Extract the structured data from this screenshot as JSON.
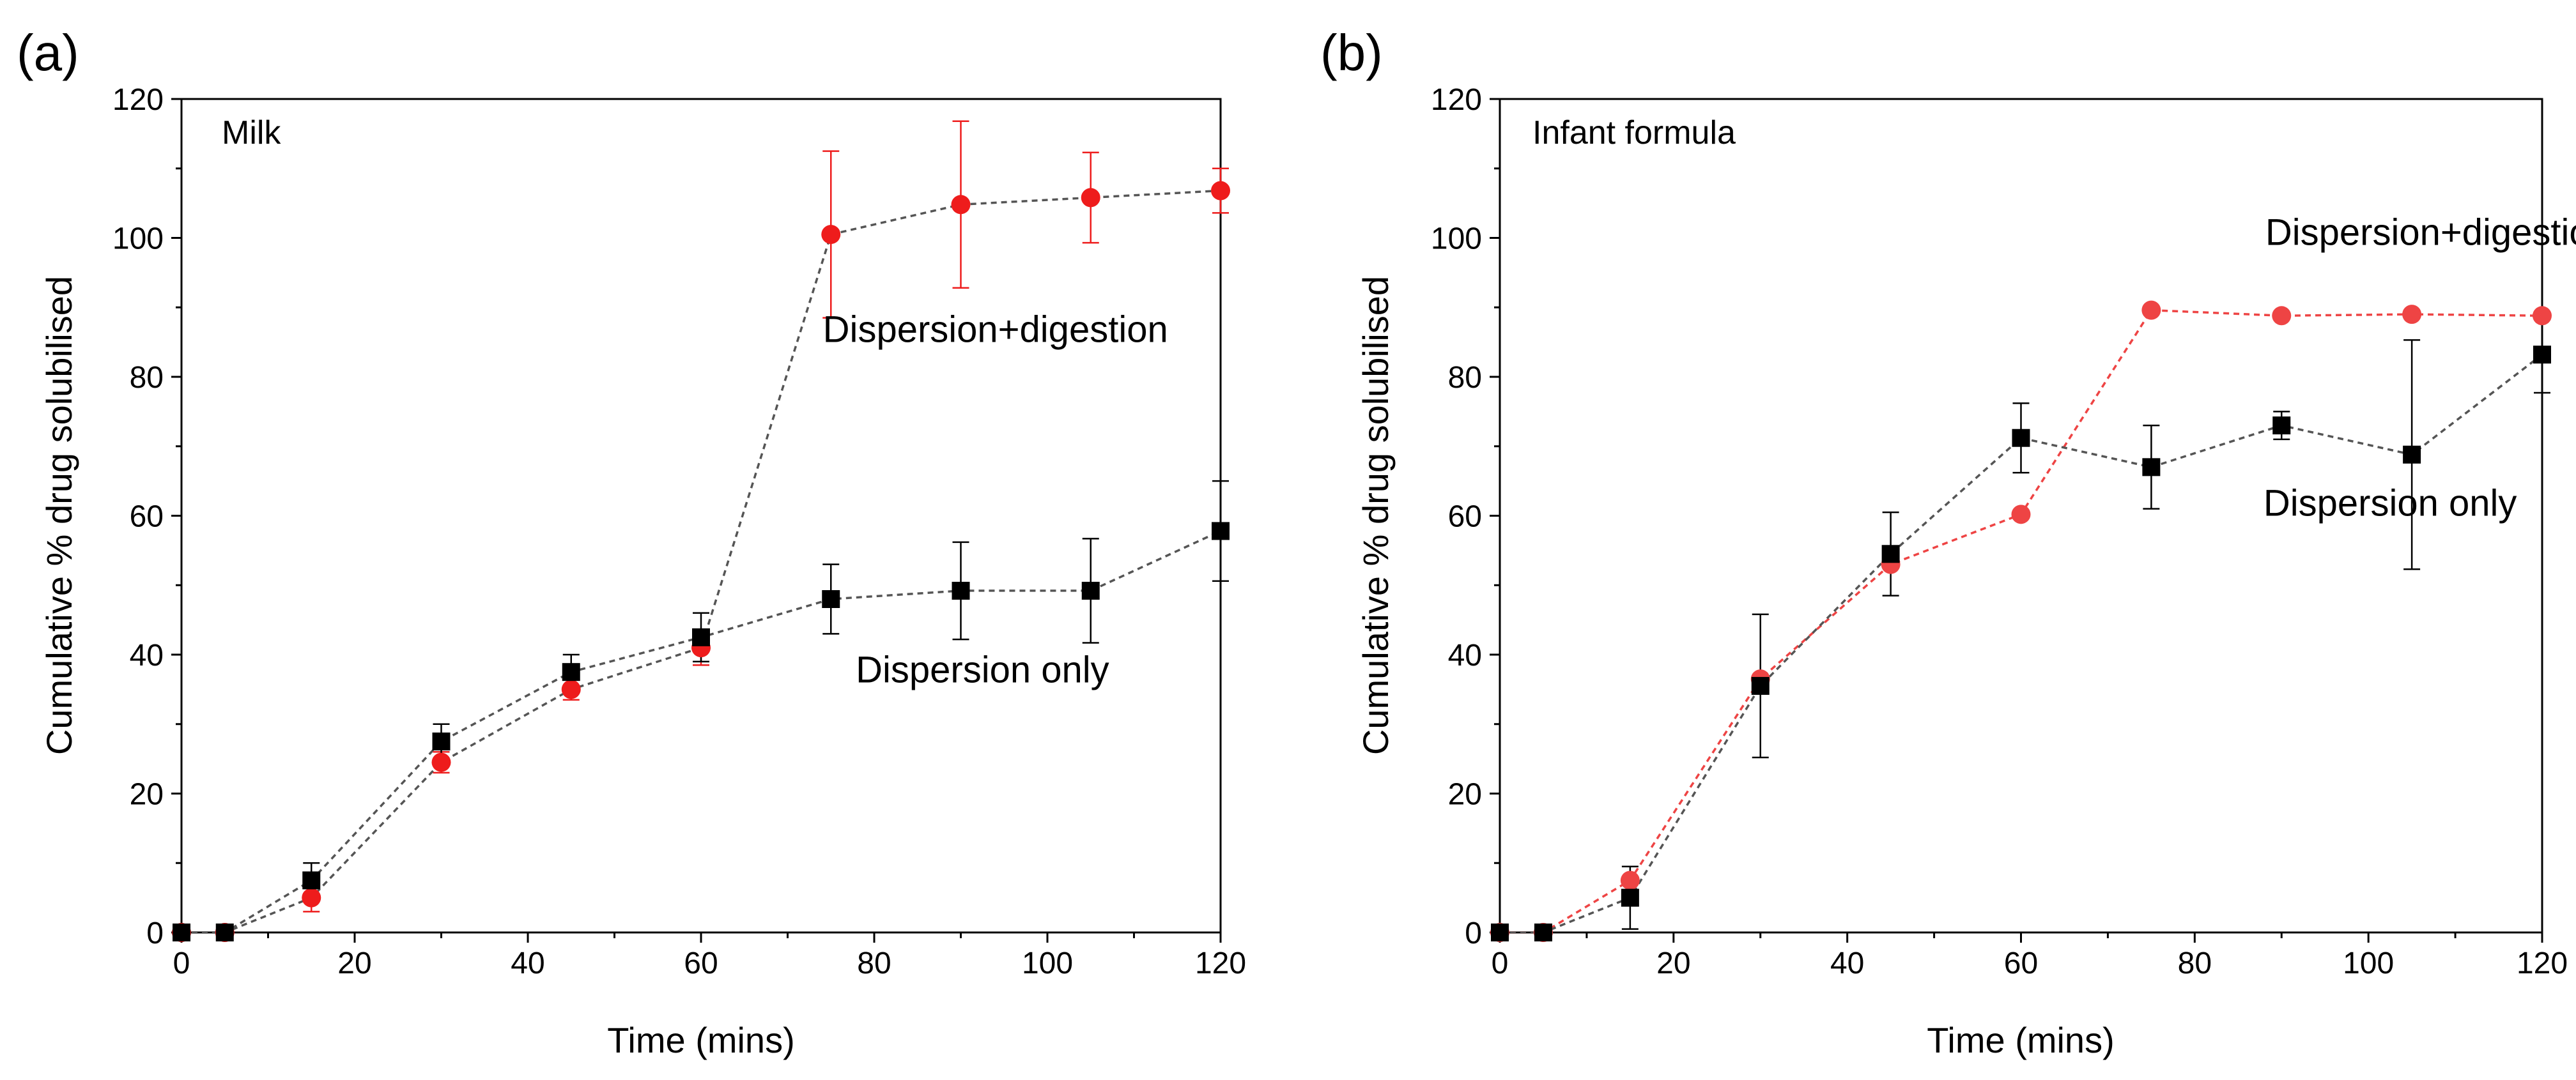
{
  "figure": {
    "panels": [
      {
        "label": "(a)",
        "inset_title": "Milk",
        "xlabel": "Time (mins)",
        "ylabel": "Cumulative % drug solubilised"
      },
      {
        "label": "(b)",
        "inset_title": "Infant formula",
        "xlabel": "Time (mins)",
        "ylabel": "Cumulative % drug solubilised"
      }
    ]
  },
  "chart_data": [
    {
      "type": "line",
      "title": "Milk",
      "panel_label": "(a)",
      "xlabel": "Time (mins)",
      "ylabel": "Cumulative % drug solubilised",
      "xlim": [
        0,
        120
      ],
      "ylim": [
        0,
        120
      ],
      "xticks": [
        0,
        20,
        40,
        60,
        80,
        100,
        120
      ],
      "yticks": [
        0,
        20,
        40,
        60,
        80,
        100,
        120
      ],
      "grid": false,
      "series": [
        {
          "name": "Dispersion+digestion",
          "color": "#ee1c1c",
          "line_color": "#555555",
          "marker": "circle",
          "x": [
            0,
            5,
            15,
            30,
            45,
            60,
            75,
            90,
            105,
            120
          ],
          "y": [
            0,
            0,
            5,
            24.5,
            35,
            41,
            100.5,
            104.8,
            105.8,
            106.8
          ],
          "err": [
            0,
            0,
            2,
            1.5,
            1.5,
            2.5,
            12,
            12,
            6.5,
            3.2
          ]
        },
        {
          "name": "Dispersion only",
          "color": "#000000",
          "line_color": "#555555",
          "marker": "square",
          "x": [
            0,
            5,
            15,
            30,
            45,
            60,
            75,
            90,
            105,
            120
          ],
          "y": [
            0,
            0,
            7.5,
            27.5,
            37.5,
            42.5,
            48,
            49.2,
            49.2,
            57.8
          ],
          "err": [
            0,
            0,
            2.5,
            2.5,
            2.5,
            3.5,
            5,
            7,
            7.5,
            7.2
          ]
        }
      ],
      "annotations": [
        {
          "text": "Dispersion+digestion",
          "x": 94,
          "y": 85
        },
        {
          "text": "Dispersion only",
          "x": 92.5,
          "y": 36
        }
      ]
    },
    {
      "type": "line",
      "title": "Infant formula",
      "panel_label": "(b)",
      "xlabel": "Time (mins)",
      "ylabel": "Cumulative % drug solubilised",
      "xlim": [
        0,
        120
      ],
      "ylim": [
        0,
        120
      ],
      "xticks": [
        0,
        20,
        40,
        60,
        80,
        100,
        120
      ],
      "yticks": [
        0,
        20,
        40,
        60,
        80,
        100,
        120
      ],
      "grid": false,
      "series": [
        {
          "name": "Dispersion+digestion",
          "color": "#ee4444",
          "line_color": "#ee4444",
          "marker": "circle",
          "x": [
            0,
            5,
            15,
            30,
            45,
            60,
            75,
            90,
            105,
            120
          ],
          "y": [
            0,
            0,
            7.5,
            36.5,
            53,
            60.2,
            89.6,
            88.8,
            89,
            88.8
          ],
          "err": [
            0,
            0,
            0,
            0,
            0,
            0,
            0,
            0,
            0,
            0
          ]
        },
        {
          "name": "Dispersion only",
          "color": "#000000",
          "line_color": "#555555",
          "marker": "square",
          "x": [
            0,
            5,
            15,
            30,
            45,
            60,
            75,
            90,
            105,
            120
          ],
          "y": [
            0,
            0,
            5,
            35.5,
            54.5,
            71.2,
            67,
            73,
            68.8,
            83.2
          ],
          "err": [
            0,
            0,
            4.5,
            10.3,
            6,
            5,
            6,
            2,
            16.5,
            5.5
          ]
        }
      ],
      "annotations": [
        {
          "text": "Dispersion+digestion",
          "x": 108,
          "y": 99
        },
        {
          "text": "Dispersion only",
          "x": 102.5,
          "y": 60
        }
      ]
    }
  ]
}
